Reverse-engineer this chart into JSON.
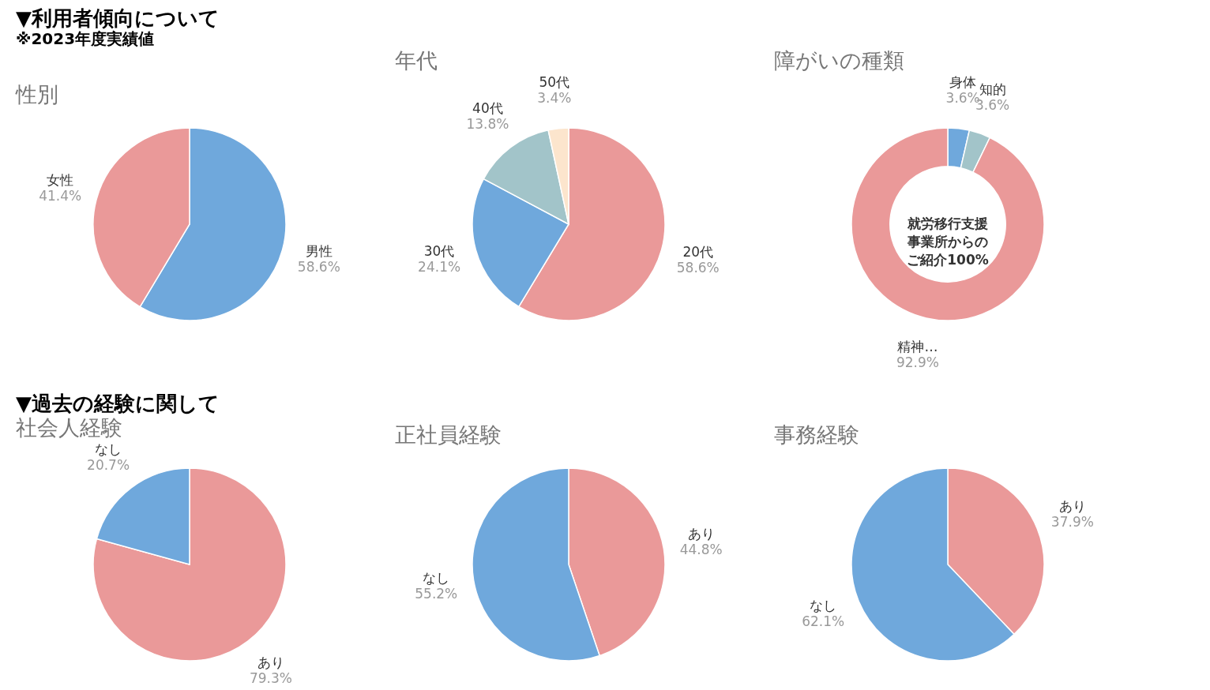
{
  "chart_data": [
    {
      "type": "pie",
      "title": "性別",
      "categories": [
        "男性",
        "女性"
      ],
      "values": [
        58.6,
        41.4
      ],
      "value_labels": [
        "58.6%",
        "41.4%"
      ],
      "colors": [
        "#6fa8dc",
        "#ea9999"
      ],
      "legend": false,
      "annotations": [
        "▼利用者傾向について",
        "※2023年度実績値"
      ]
    },
    {
      "type": "pie",
      "title": "年代",
      "categories": [
        "20代",
        "30代",
        "40代",
        "50代"
      ],
      "values": [
        58.6,
        24.1,
        13.8,
        3.4
      ],
      "value_labels": [
        "58.6%",
        "24.1%",
        "13.8%",
        "3.4%"
      ],
      "colors": [
        "#ea9999",
        "#6fa8dc",
        "#a2c4c9",
        "#fce5cd"
      ],
      "legend": false
    },
    {
      "type": "donut",
      "title": "障がいの種類",
      "categories": [
        "身体",
        "知的",
        "精神…"
      ],
      "values": [
        3.6,
        3.6,
        92.9
      ],
      "value_labels": [
        "3.6%",
        "3.6%",
        "92.9%"
      ],
      "colors": [
        "#6fa8dc",
        "#a2c4c9",
        "#ea9999"
      ],
      "legend": false,
      "annotations": [
        "就労移行支援事業所からのご紹介100%"
      ]
    },
    {
      "type": "pie",
      "title": "社会人経験",
      "categories": [
        "あり",
        "なし"
      ],
      "values": [
        79.3,
        20.7
      ],
      "value_labels": [
        "79.3%",
        "20.7%"
      ],
      "colors": [
        "#ea9999",
        "#6fa8dc"
      ],
      "legend": false,
      "annotations": [
        "▼過去の経験に関して"
      ]
    },
    {
      "type": "pie",
      "title": "正社員経験",
      "categories": [
        "あり",
        "なし"
      ],
      "values": [
        44.8,
        55.2
      ],
      "value_labels": [
        "44.8%",
        "55.2%"
      ],
      "colors": [
        "#ea9999",
        "#6fa8dc"
      ],
      "legend": false
    },
    {
      "type": "pie",
      "title": "事務経験",
      "categories": [
        "あり",
        "なし"
      ],
      "values": [
        37.9,
        62.1
      ],
      "value_labels": [
        "37.9%",
        "62.1%"
      ],
      "colors": [
        "#ea9999",
        "#6fa8dc"
      ],
      "legend": false
    }
  ]
}
